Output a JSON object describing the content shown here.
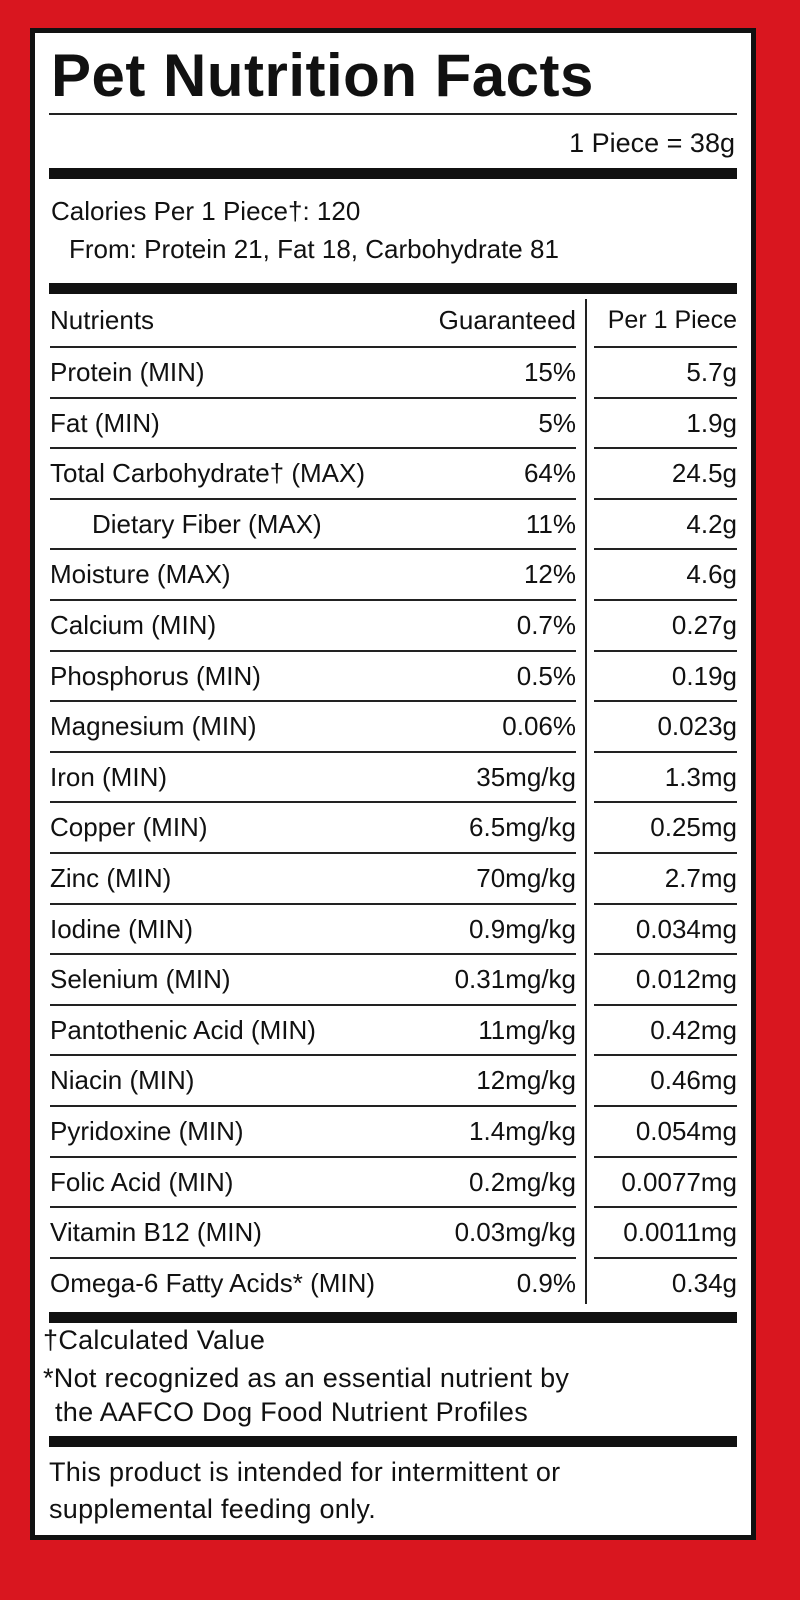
{
  "title": "Pet Nutrition Facts",
  "serving": "1 Piece = 38g",
  "calories": "Calories Per 1 Piece†: 120",
  "calories_from": "From: Protein 21, Fat 18, Carbohydrate 81",
  "table": {
    "header": [
      "Nutrients",
      "Guaranteed",
      "Per 1 Piece"
    ],
    "rows": [
      [
        "Protein (MIN)",
        "15%",
        "5.7g"
      ],
      [
        "Fat (MIN)",
        "5%",
        "1.9g"
      ],
      [
        "Total Carbohydrate† (MAX)",
        "64%",
        "24.5g"
      ],
      [
        "Dietary Fiber (MAX)",
        "11%",
        "4.2g"
      ],
      [
        "Moisture (MAX)",
        "12%",
        "4.6g"
      ],
      [
        "Calcium (MIN)",
        "0.7%",
        "0.27g"
      ],
      [
        "Phosphorus (MIN)",
        "0.5%",
        "0.19g"
      ],
      [
        "Magnesium (MIN)",
        "0.06%",
        "0.023g"
      ],
      [
        "Iron (MIN)",
        "35mg/kg",
        "1.3mg"
      ],
      [
        "Copper (MIN)",
        "6.5mg/kg",
        "0.25mg"
      ],
      [
        "Zinc (MIN)",
        "70mg/kg",
        "2.7mg"
      ],
      [
        "Iodine (MIN)",
        "0.9mg/kg",
        "0.034mg"
      ],
      [
        "Selenium (MIN)",
        "0.31mg/kg",
        "0.012mg"
      ],
      [
        "Pantothenic Acid (MIN)",
        "11mg/kg",
        "0.42mg"
      ],
      [
        "Niacin (MIN)",
        "12mg/kg",
        "0.46mg"
      ],
      [
        "Pyridoxine (MIN)",
        "1.4mg/kg",
        "0.054mg"
      ],
      [
        "Folic Acid (MIN)",
        "0.2mg/kg",
        "0.0077mg"
      ],
      [
        "Vitamin B12 (MIN)",
        "0.03mg/kg",
        "0.0011mg"
      ],
      [
        "Omega-6 Fatty Acids* (MIN)",
        "0.9%",
        "0.34g"
      ]
    ]
  },
  "footnotes": [
    "†Calculated Value",
    "*Not recognized as an essential nutrient by",
    "the AAFCO Dog Food Nutrient Profiles"
  ],
  "notice": [
    "This product is intended for intermittent or",
    "supplemental feeding only."
  ]
}
